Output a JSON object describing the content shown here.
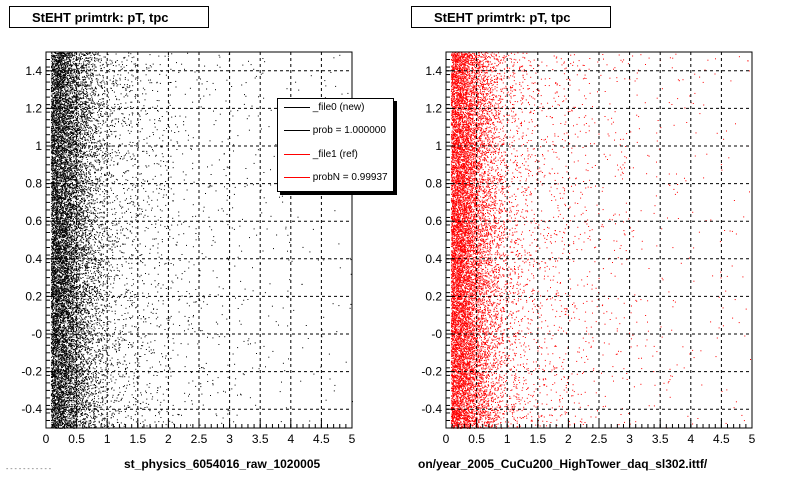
{
  "panels": [
    {
      "title": "StEHT primtrk: pT, tpc",
      "footer": "st_physics_6054016_raw_1020005",
      "legend": [
        {
          "label": "_file0 (new)",
          "color": "#000000"
        },
        {
          "label": "prob = 1.000000",
          "color": "#000000"
        },
        {
          "label": "_file1 (ref)",
          "color": "#ff0000"
        },
        {
          "label": "probN = 0.99937",
          "color": "#ff0000"
        }
      ]
    },
    {
      "title": "StEHT primtrk: pT, tpc",
      "footer": "on/year_2005_CuCu200_HighTower_daq_sl302.ittf/",
      "legend": []
    }
  ],
  "small_caption": "- - - - - - - - - - -",
  "chart_data": [
    {
      "type": "scatter",
      "title": "StEHT primtrk: pT, tpc",
      "x_ticks": [
        "0",
        "0.5",
        "1",
        "1.5",
        "2",
        "2.5",
        "3",
        "3.5",
        "4",
        "4.5",
        "5"
      ],
      "y_ticks": [
        "-0.4",
        "-0.2",
        "-0",
        "0.2",
        "0.4",
        "0.6",
        "0.8",
        "1",
        "1.2",
        "1.4"
      ],
      "xlim": [
        0,
        5
      ],
      "ylim": [
        -0.5,
        1.5
      ],
      "grid": true,
      "color": "#000000",
      "density_profile": [
        {
          "x": 0.1,
          "density": 1.0
        },
        {
          "x": 0.3,
          "density": 0.85
        },
        {
          "x": 0.5,
          "density": 0.45
        },
        {
          "x": 0.75,
          "density": 0.2
        },
        {
          "x": 1.0,
          "density": 0.08
        },
        {
          "x": 1.5,
          "density": 0.03
        },
        {
          "x": 2.5,
          "density": 0.01
        },
        {
          "x": 4.0,
          "density": 0.003
        }
      ],
      "legend_position": "top-right"
    },
    {
      "type": "scatter",
      "title": "StEHT primtrk: pT, tpc",
      "x_ticks": [
        "0",
        "0.5",
        "1",
        "1.5",
        "2",
        "2.5",
        "3",
        "3.5",
        "4",
        "4.5",
        "5"
      ],
      "y_ticks": [
        "-0.4",
        "-0.2",
        "-0",
        "0.2",
        "0.4",
        "0.6",
        "0.8",
        "1",
        "1.2",
        "1.4"
      ],
      "xlim": [
        0,
        5
      ],
      "ylim": [
        -0.5,
        1.5
      ],
      "grid": true,
      "color": "#ff0000",
      "density_profile": [
        {
          "x": 0.1,
          "density": 1.0
        },
        {
          "x": 0.3,
          "density": 0.85
        },
        {
          "x": 0.5,
          "density": 0.45
        },
        {
          "x": 0.75,
          "density": 0.2
        },
        {
          "x": 1.0,
          "density": 0.08
        },
        {
          "x": 1.5,
          "density": 0.03
        },
        {
          "x": 2.5,
          "density": 0.01
        },
        {
          "x": 4.0,
          "density": 0.003
        }
      ],
      "legend_position": "none"
    }
  ]
}
